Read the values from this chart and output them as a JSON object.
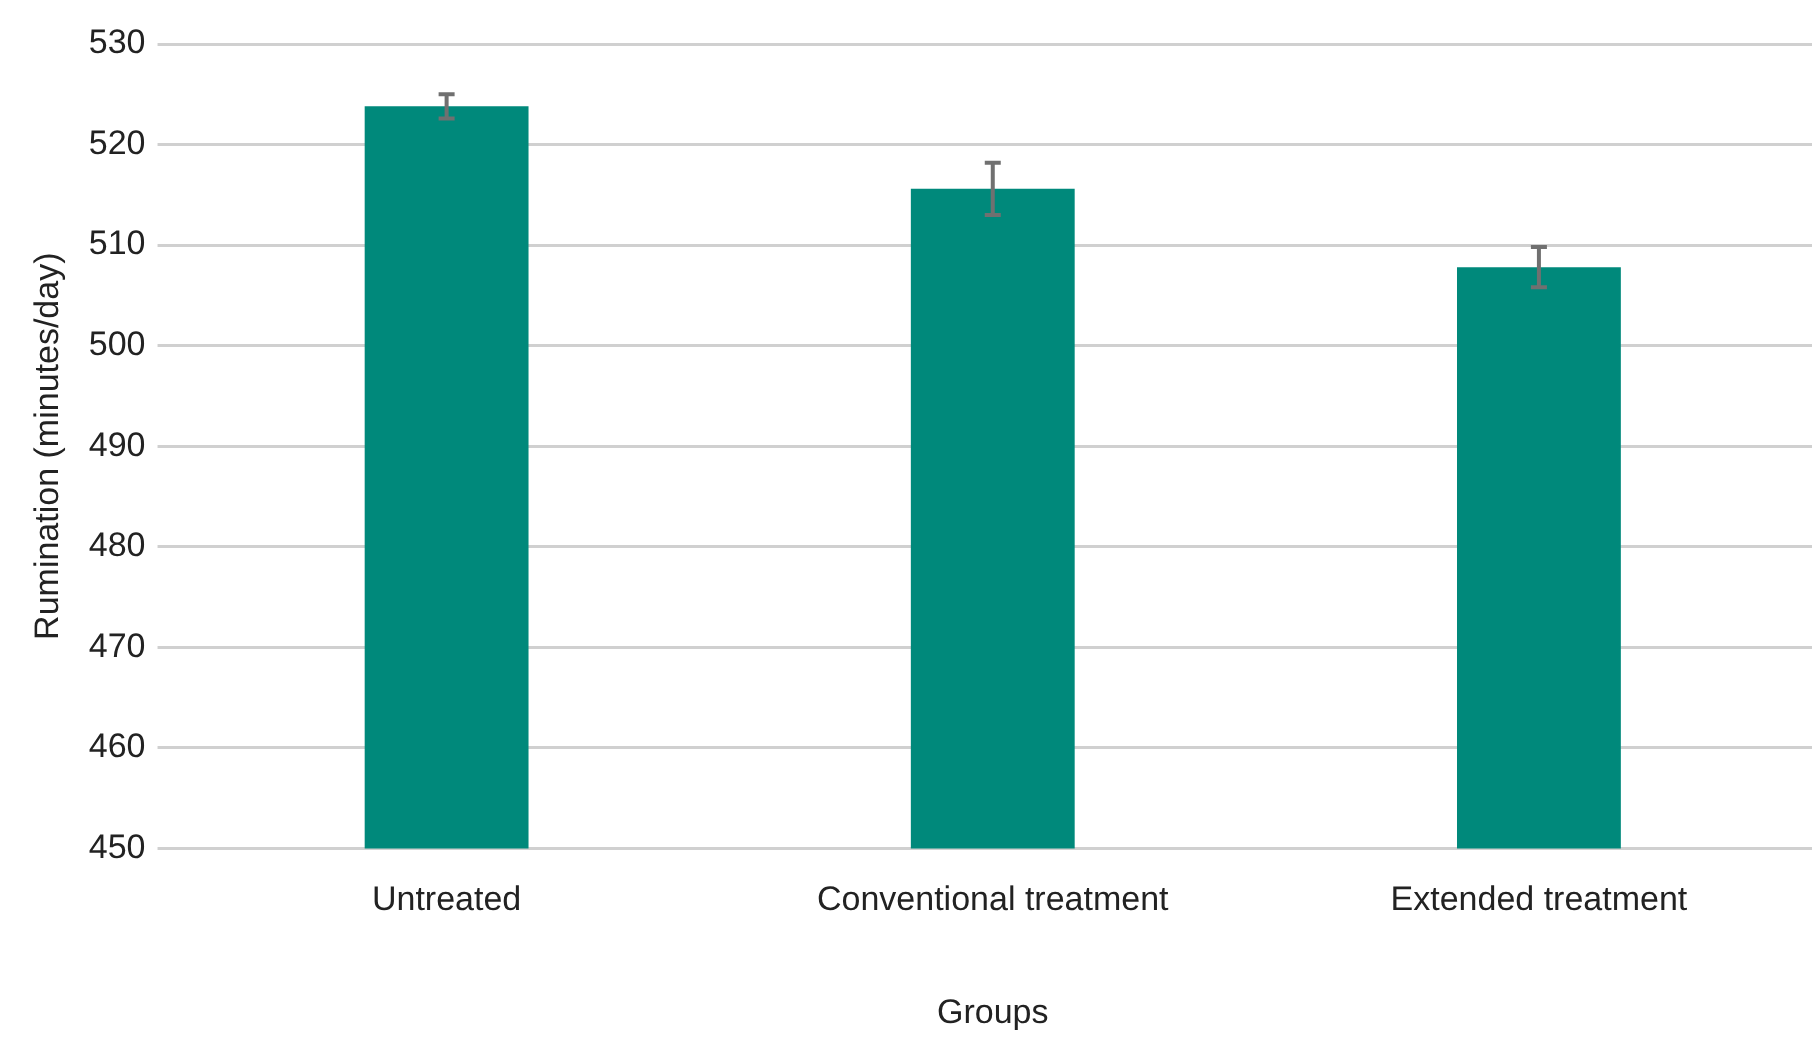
{
  "chart_data": {
    "type": "bar",
    "xlabel": "Groups",
    "ylabel": "Rumination (minutes/day)",
    "categories": [
      "Untreated",
      "Conventional treatment",
      "Extended treatment"
    ],
    "values": [
      523.8,
      515.6,
      507.8
    ],
    "errors": [
      1.2,
      2.6,
      2.0
    ],
    "color": "#00897b",
    "ylim": [
      450,
      530
    ],
    "yticks": [
      450,
      460,
      470,
      480,
      490,
      500,
      510,
      520,
      530
    ],
    "grid": "y",
    "legend": false
  }
}
